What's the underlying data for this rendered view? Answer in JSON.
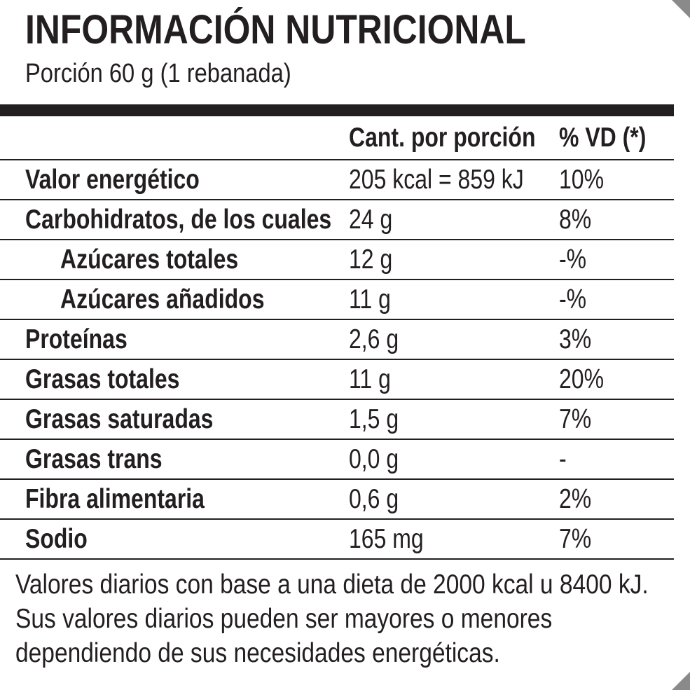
{
  "label": {
    "title": "INFORMACIÓN NUTRICIONAL",
    "portion": "Porción 60 g (1 rebanada)"
  },
  "table": {
    "headers": {
      "amount": "Cant. por porción",
      "dv": "% VD (*)"
    },
    "rows": [
      {
        "name": "Valor energético",
        "amount": "205 kcal = 859 kJ",
        "dv": "10%"
      },
      {
        "name": "Carbohidratos, de los cuales",
        "amount": "24 g",
        "dv": "8%"
      },
      {
        "name": "Azúcares totales",
        "amount": "12 g",
        "dv": "-%"
      },
      {
        "name": "Azúcares añadidos",
        "amount": "11 g",
        "dv": "-%"
      },
      {
        "name": "Proteínas",
        "amount": "2,6 g",
        "dv": "3%"
      },
      {
        "name": "Grasas totales",
        "amount": "11 g",
        "dv": "20%"
      },
      {
        "name": "Grasas saturadas",
        "amount": "1,5 g",
        "dv": "7%"
      },
      {
        "name": "Grasas trans",
        "amount": "0,0 g",
        "dv": "-"
      },
      {
        "name": "Fibra alimentaria",
        "amount": "0,6 g",
        "dv": "2%"
      },
      {
        "name": "Sodio",
        "amount": "165 mg",
        "dv": "7%"
      }
    ]
  },
  "footnote": {
    "line1": "Valores diarios con base a una dieta de 2000 kcal u 8400 kJ.",
    "line2": "Sus valores diarios pueden ser mayores o menores",
    "line3": "dependiendo de sus necesidades energéticas."
  }
}
